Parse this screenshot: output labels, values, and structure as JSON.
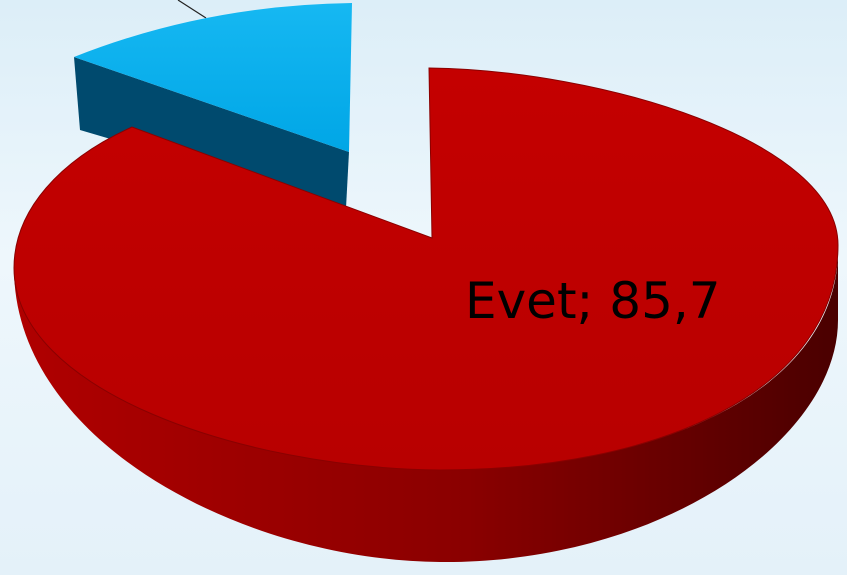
{
  "chart_data": {
    "type": "pie",
    "style": "3d-exploded",
    "slices": [
      {
        "label": "Evet",
        "value": 85.7,
        "display": "Evet; 85,7",
        "color": "#c00000",
        "side_color": "#7a0000"
      },
      {
        "label": "",
        "value": 14.3,
        "display": "",
        "color": "#00aeef",
        "side_color": "#004a6e"
      }
    ],
    "legend": "none"
  }
}
